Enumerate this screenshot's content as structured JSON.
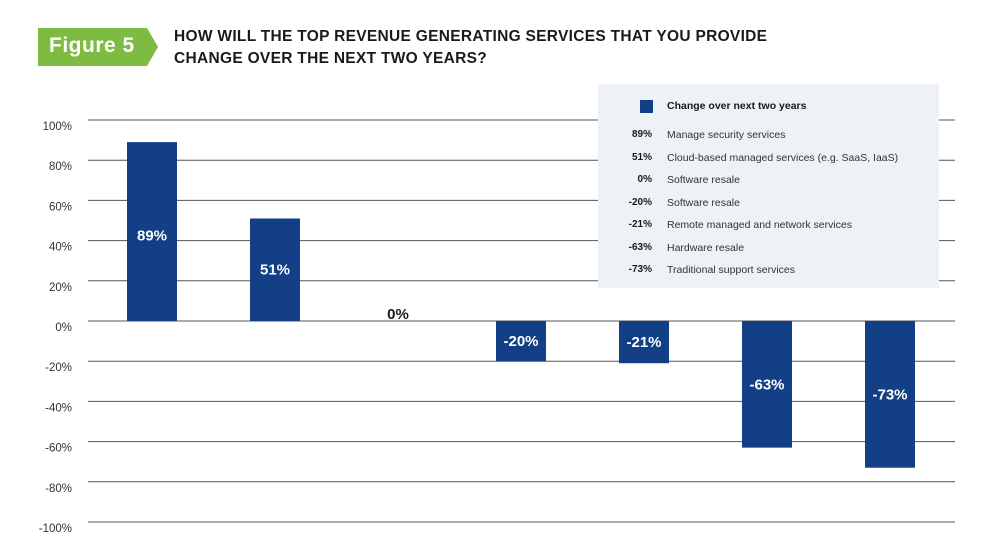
{
  "figure_label": "Figure 5",
  "title_lines": [
    "HOW WILL THE TOP REVENUE GENERATING SERVICES THAT YOU PROVIDE",
    "CHANGE OVER THE NEXT TWO YEARS?"
  ],
  "colors": {
    "bar": "#123f86",
    "badge": "#7dbb42",
    "legend_bg": "#eef1f6",
    "grid": "#555555"
  },
  "chart_data": {
    "type": "bar",
    "title": "HOW WILL THE TOP REVENUE GENERATING SERVICES THAT YOU PROVIDE CHANGE OVER THE NEXT TWO YEARS?",
    "categories": [
      "Manage security services",
      "Cloud-based managed services (e.g. SaaS, IaaS)",
      "Software resale",
      "Software resale",
      "Remote managed and network services",
      "Hardware resale",
      "Traditional support services"
    ],
    "series": [
      {
        "name": "Change over next two years",
        "values": [
          89,
          51,
          0,
          -20,
          -21,
          -63,
          -73
        ],
        "labels": [
          "89%",
          "51%",
          "0%",
          "-20%",
          "-21%",
          "-63%",
          "-73%"
        ]
      }
    ],
    "ylim": [
      -100,
      100
    ],
    "yticks": [
      100,
      80,
      60,
      40,
      20,
      0,
      -20,
      -40,
      -60,
      -80,
      -100
    ],
    "ytick_labels": [
      "100%",
      "80%",
      "60%",
      "40%",
      "20%",
      "0%",
      "-20%",
      "-40%",
      "-60%",
      "-80%",
      "-100%"
    ],
    "grid": true,
    "legend_position": "top-right",
    "xlabel": "",
    "ylabel": ""
  }
}
